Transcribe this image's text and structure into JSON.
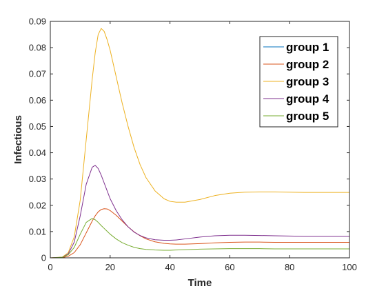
{
  "chart_data": {
    "type": "line",
    "title": "",
    "xlabel": "Time",
    "ylabel": "Infectious",
    "xlim": [
      0,
      100
    ],
    "ylim": [
      0,
      0.09
    ],
    "xticks": [
      0,
      20,
      40,
      60,
      80,
      100
    ],
    "yticks": [
      0,
      0.01,
      0.02,
      0.03,
      0.04,
      0.05,
      0.06,
      0.07,
      0.08,
      0.09
    ],
    "xtick_labels": [
      "0",
      "20",
      "40",
      "60",
      "80",
      "100"
    ],
    "ytick_labels": [
      "0",
      "0.01",
      "0.02",
      "0.03",
      "0.04",
      "0.05",
      "0.06",
      "0.07",
      "0.08",
      "0.09"
    ],
    "grid": false,
    "legend_position": "top-right",
    "x": [
      0,
      4,
      6,
      8,
      10,
      12,
      14,
      15,
      16,
      17,
      18,
      19,
      20,
      22,
      24,
      26,
      28,
      30,
      32,
      35,
      38,
      40,
      42,
      45,
      50,
      55,
      60,
      65,
      70,
      75,
      80,
      85,
      90,
      95,
      100
    ],
    "series": [
      {
        "name": "group 1",
        "color": "#0072BD",
        "values": [
          0,
          0,
          0,
          0,
          0,
          0,
          0,
          0,
          0,
          0,
          0,
          0,
          0,
          0,
          0,
          0,
          0,
          0,
          0,
          0,
          0,
          0,
          0,
          0,
          0,
          0,
          0,
          0,
          0,
          0,
          0,
          0,
          0,
          0,
          0
        ]
      },
      {
        "name": "group 2",
        "color": "#D95319",
        "values": [
          0,
          0.0001,
          0.0006,
          0.002,
          0.005,
          0.0095,
          0.014,
          0.016,
          0.0175,
          0.0184,
          0.0187,
          0.0186,
          0.018,
          0.0162,
          0.014,
          0.0118,
          0.0099,
          0.0084,
          0.0072,
          0.0061,
          0.0055,
          0.0053,
          0.0052,
          0.0052,
          0.0054,
          0.0057,
          0.0059,
          0.006,
          0.006,
          0.0059,
          0.0059,
          0.0059,
          0.0059,
          0.0059,
          0.0059
        ]
      },
      {
        "name": "group 3",
        "color": "#EDB120",
        "values": [
          0,
          0.0003,
          0.002,
          0.008,
          0.022,
          0.045,
          0.068,
          0.078,
          0.085,
          0.0873,
          0.0862,
          0.083,
          0.079,
          0.069,
          0.059,
          0.05,
          0.042,
          0.0355,
          0.0305,
          0.0255,
          0.0225,
          0.0215,
          0.0212,
          0.0212,
          0.0222,
          0.0237,
          0.0246,
          0.025,
          0.0251,
          0.0251,
          0.025,
          0.0249,
          0.0249,
          0.0249,
          0.0249
        ]
      },
      {
        "name": "group 4",
        "color": "#7E2F8E",
        "values": [
          0,
          0.0002,
          0.0015,
          0.006,
          0.016,
          0.028,
          0.0345,
          0.0352,
          0.034,
          0.0315,
          0.0285,
          0.0255,
          0.0225,
          0.018,
          0.0145,
          0.0118,
          0.0098,
          0.0085,
          0.0076,
          0.0069,
          0.0067,
          0.0067,
          0.0068,
          0.0072,
          0.0079,
          0.0084,
          0.0086,
          0.0086,
          0.0085,
          0.0084,
          0.0083,
          0.0082,
          0.0082,
          0.0082,
          0.0082
        ]
      },
      {
        "name": "group 5",
        "color": "#77AC30",
        "values": [
          0,
          0.0002,
          0.0012,
          0.004,
          0.009,
          0.0135,
          0.015,
          0.0145,
          0.0135,
          0.0123,
          0.0112,
          0.0101,
          0.009,
          0.0072,
          0.0058,
          0.0048,
          0.004,
          0.0035,
          0.0032,
          0.003,
          0.0029,
          0.0029,
          0.003,
          0.0031,
          0.0033,
          0.0034,
          0.0035,
          0.0035,
          0.0035,
          0.0034,
          0.0034,
          0.0034,
          0.0034,
          0.0034,
          0.0034
        ]
      }
    ]
  }
}
